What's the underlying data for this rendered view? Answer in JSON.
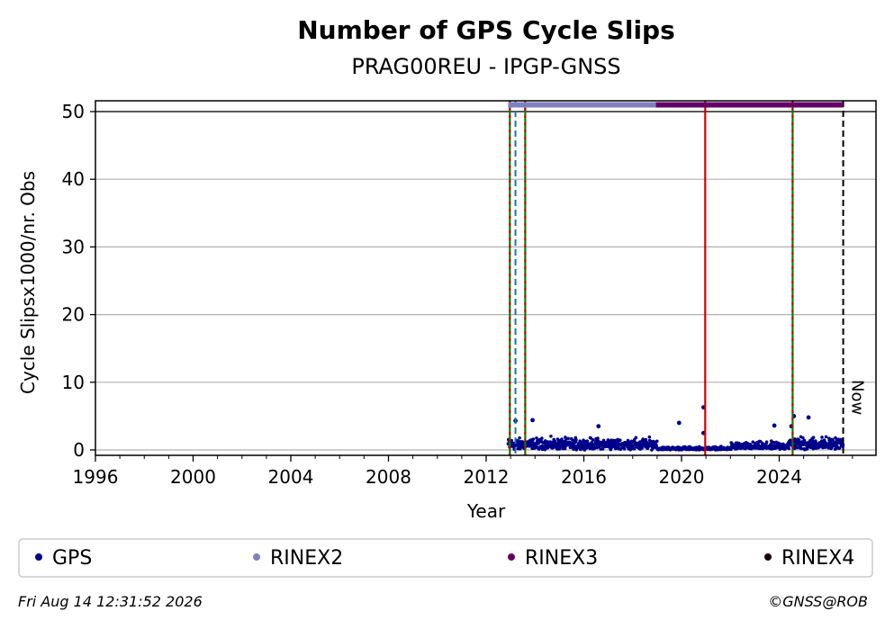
{
  "chart_data": {
    "type": "scatter",
    "title": "Number of GPS Cycle Slips",
    "subtitle": "PRAG00REU - IPGP-GNSS",
    "xlabel": "Year",
    "ylabel": "Cycle Slipsx1000/nr. Obs",
    "xlim": [
      1996,
      2027.5
    ],
    "ylim": [
      0,
      52
    ],
    "x_ticks": [
      1996,
      2000,
      2004,
      2008,
      2012,
      2016,
      2020,
      2024
    ],
    "y_ticks": [
      0,
      10,
      20,
      30,
      40,
      50
    ],
    "grid": "horizontal",
    "series": [
      {
        "name": "GPS",
        "color": "#00008b",
        "segments": [
          {
            "start": 2012.9,
            "end": 2019.0,
            "base": 1.0,
            "amp": 1.2
          },
          {
            "start": 2019.0,
            "end": 2022.0,
            "base": 0.2,
            "amp": 0.4
          },
          {
            "start": 2022.0,
            "end": 2024.3,
            "base": 0.5,
            "amp": 1.0
          },
          {
            "start": 2024.3,
            "end": 2026.62,
            "base": 1.0,
            "amp": 1.5
          }
        ],
        "outliers": [
          {
            "x": 2013.2,
            "y": 4.3
          },
          {
            "x": 2013.9,
            "y": 4.4
          },
          {
            "x": 2016.6,
            "y": 3.5
          },
          {
            "x": 2019.9,
            "y": 4.0
          },
          {
            "x": 2020.9,
            "y": 6.3
          },
          {
            "x": 2020.9,
            "y": 2.5
          },
          {
            "x": 2023.8,
            "y": 3.6
          },
          {
            "x": 2024.6,
            "y": 5.0
          },
          {
            "x": 2025.2,
            "y": 4.8
          },
          {
            "x": 2024.5,
            "y": 3.5
          }
        ]
      }
    ],
    "rinex_bars": [
      {
        "name": "RINEX2",
        "color": "#8080c0",
        "start": 2012.9,
        "end": 2018.95,
        "y": 51
      },
      {
        "name": "RINEX3",
        "color": "#660066",
        "start": 2018.95,
        "end": 2026.62,
        "y": 51
      }
    ],
    "vertical_lines": [
      {
        "x": 2012.97,
        "color": "#008000",
        "overlay": "#cc0000",
        "style": "green-red-dash"
      },
      {
        "x": 2013.2,
        "color": "#1f6fb4",
        "style": "dashed"
      },
      {
        "x": 2013.6,
        "color": "#008000",
        "overlay": "#cc0000",
        "style": "green-red-dash"
      },
      {
        "x": 2020.97,
        "color": "#cc0000",
        "style": "solid"
      },
      {
        "x": 2024.55,
        "color": "#008000",
        "overlay": "#cc0000",
        "style": "green-red-dash"
      },
      {
        "x": 2026.62,
        "color": "#000000",
        "style": "dashed"
      }
    ],
    "now_label": "Now",
    "legend": {
      "placement": "bottom",
      "entries": [
        {
          "label": "GPS",
          "color": "#00008b"
        },
        {
          "label": "RINEX2",
          "color": "#8080c0"
        },
        {
          "label": "RINEX3",
          "color": "#660066"
        },
        {
          "label": "RINEX4",
          "color": "#1a0010"
        }
      ]
    }
  },
  "footer": {
    "timestamp": "Fri Aug 14 12:31:52 2026",
    "credit": "©GNSS@ROB"
  }
}
